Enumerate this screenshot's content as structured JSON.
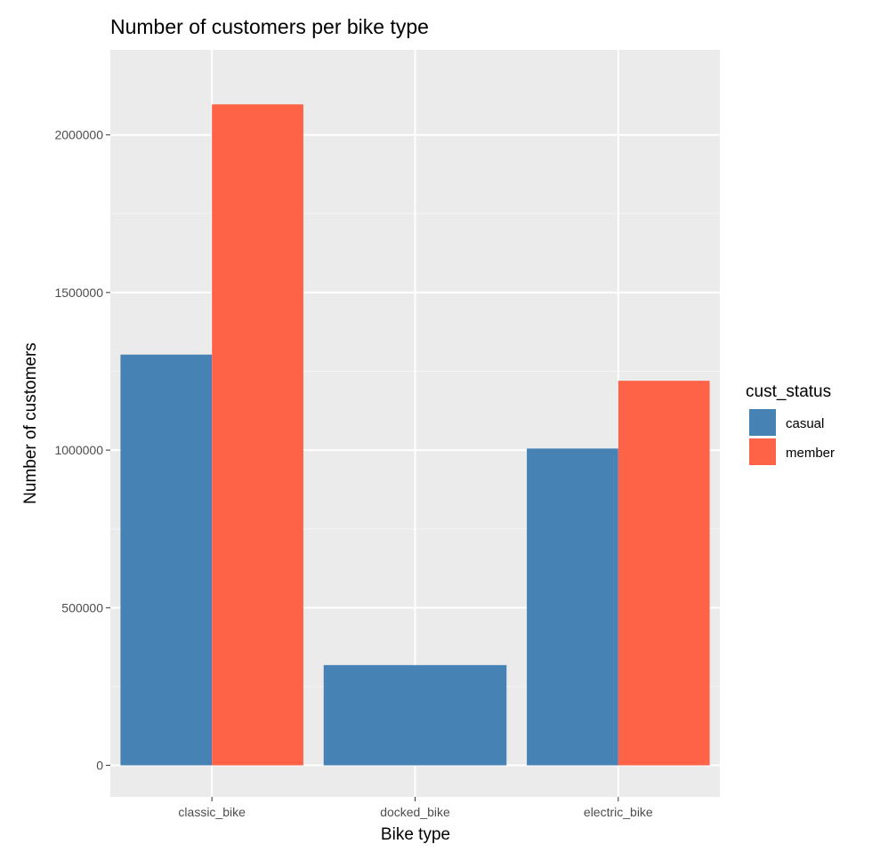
{
  "chart_data": {
    "type": "bar",
    "title": "Number of customers per bike type",
    "xlabel": "Bike type",
    "ylabel": "Number of customers",
    "categories": [
      "classic_bike",
      "docked_bike",
      "electric_bike"
    ],
    "series": [
      {
        "name": "casual",
        "color": "#4682b4",
        "values": [
          1303000,
          318000,
          1005000
        ]
      },
      {
        "name": "member",
        "color": "#ff6347",
        "values": [
          2097000,
          null,
          1220000
        ]
      }
    ],
    "ylim": [
      -100000,
      2270000
    ],
    "yticks": [
      0,
      500000,
      1000000,
      1500000,
      2000000
    ],
    "ytick_labels": [
      "0",
      "500000",
      "1000000",
      "1500000",
      "2000000"
    ],
    "legend": {
      "title": "cust_status",
      "position": "right"
    },
    "grid": true,
    "background": "#ebebeb"
  }
}
